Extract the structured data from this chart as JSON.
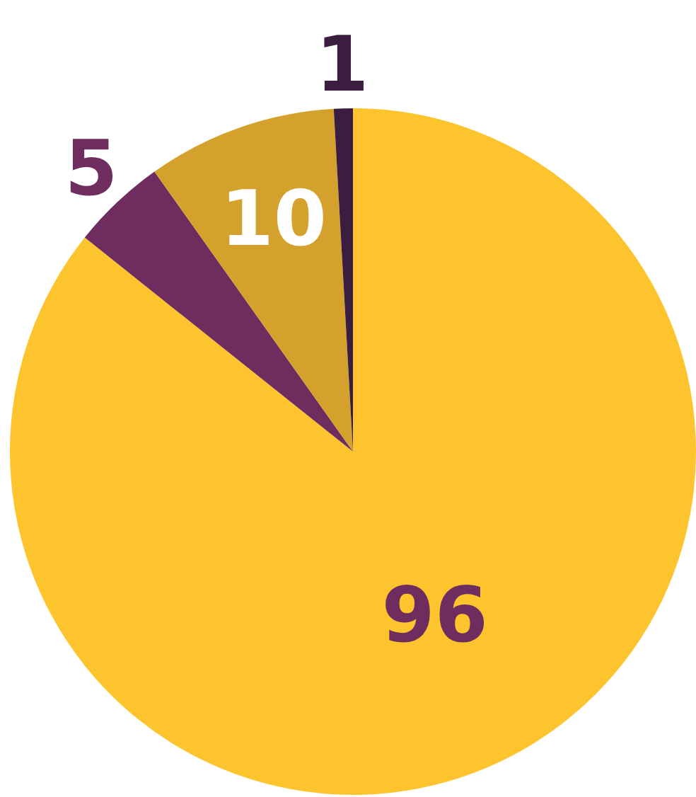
{
  "chart_data": {
    "type": "pie",
    "categories": [
      null,
      null,
      null,
      null
    ],
    "values": [
      96,
      5,
      10,
      1
    ],
    "colors": [
      "#fdc42e",
      "#6e2c5f",
      "#d4a12c",
      "#3b1e3f"
    ],
    "data_labels": true,
    "legend": false
  }
}
